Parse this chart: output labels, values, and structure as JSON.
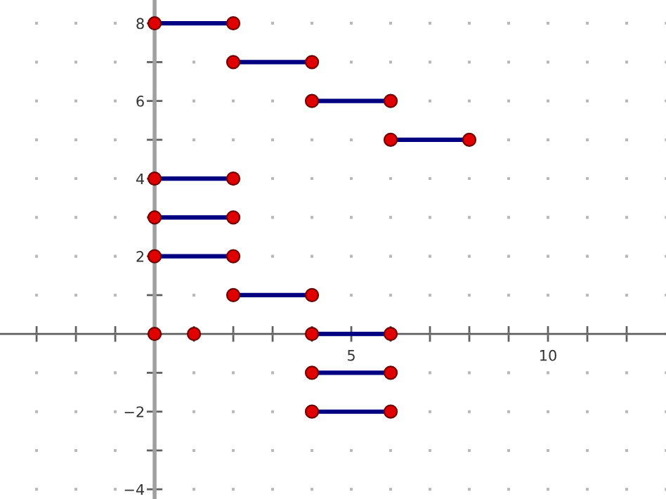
{
  "chart_data": {
    "type": "line",
    "xlim": [
      -3.93,
      13.0
    ],
    "ylim": [
      -4.25,
      8.6
    ],
    "grid": true,
    "xticks": [
      {
        "value": -3,
        "label": null
      },
      {
        "value": -2,
        "label": null
      },
      {
        "value": -1,
        "label": null
      },
      {
        "value": 0,
        "label": null
      },
      {
        "value": 1,
        "label": null
      },
      {
        "value": 2,
        "label": null
      },
      {
        "value": 3,
        "label": null
      },
      {
        "value": 4,
        "label": null
      },
      5,
      {
        "value": 6,
        "label": null
      },
      {
        "value": 7,
        "label": null
      },
      {
        "value": 8,
        "label": null
      },
      {
        "value": 9,
        "label": null
      },
      10,
      {
        "value": 11,
        "label": null
      },
      {
        "value": 12,
        "label": null
      }
    ],
    "yticks": [
      {
        "value": -4,
        "label": "−4"
      },
      {
        "value": -3,
        "label": null
      },
      {
        "value": -2,
        "label": "−2"
      },
      {
        "value": -1,
        "label": null
      },
      {
        "value": 0,
        "label": null
      },
      {
        "value": 1,
        "label": null
      },
      2,
      {
        "value": 3,
        "label": null
      },
      4,
      {
        "value": 5,
        "label": null
      },
      6,
      {
        "value": 7,
        "label": null
      },
      8
    ],
    "series": [
      {
        "color": "#000080",
        "x": [
          0,
          2
        ],
        "values": [
          8,
          8
        ]
      },
      {
        "color": "#000080",
        "x": [
          2,
          4
        ],
        "values": [
          7,
          7
        ]
      },
      {
        "color": "#000080",
        "x": [
          4,
          6
        ],
        "values": [
          6,
          6
        ]
      },
      {
        "color": "#000080",
        "x": [
          6,
          8
        ],
        "values": [
          5,
          5
        ]
      },
      {
        "color": "#000080",
        "x": [
          0,
          2
        ],
        "values": [
          4,
          4
        ]
      },
      {
        "color": "#000080",
        "x": [
          0,
          2
        ],
        "values": [
          3,
          3
        ]
      },
      {
        "color": "#000080",
        "x": [
          0,
          2
        ],
        "values": [
          2,
          2
        ]
      },
      {
        "color": "#000080",
        "x": [
          2,
          4
        ],
        "values": [
          1,
          1
        ]
      },
      {
        "color": "#000080",
        "x": [
          4,
          6
        ],
        "values": [
          0,
          0
        ]
      },
      {
        "color": "#000080",
        "x": [
          4,
          6
        ],
        "values": [
          -1,
          -1
        ]
      },
      {
        "color": "#000080",
        "x": [
          4,
          6
        ],
        "values": [
          -2,
          -2
        ]
      },
      {
        "type": "scatter",
        "color": "#e00000",
        "x": [
          0,
          2,
          2,
          4,
          4,
          6,
          6,
          8,
          0,
          2,
          0,
          2,
          0,
          2,
          2,
          4,
          4,
          6,
          4,
          6,
          4,
          6,
          0,
          1
        ],
        "values": [
          8,
          8,
          7,
          7,
          6,
          6,
          5,
          5,
          4,
          4,
          3,
          3,
          2,
          2,
          1,
          1,
          0,
          0,
          -1,
          -1,
          -2,
          -2,
          0,
          0
        ]
      }
    ]
  }
}
